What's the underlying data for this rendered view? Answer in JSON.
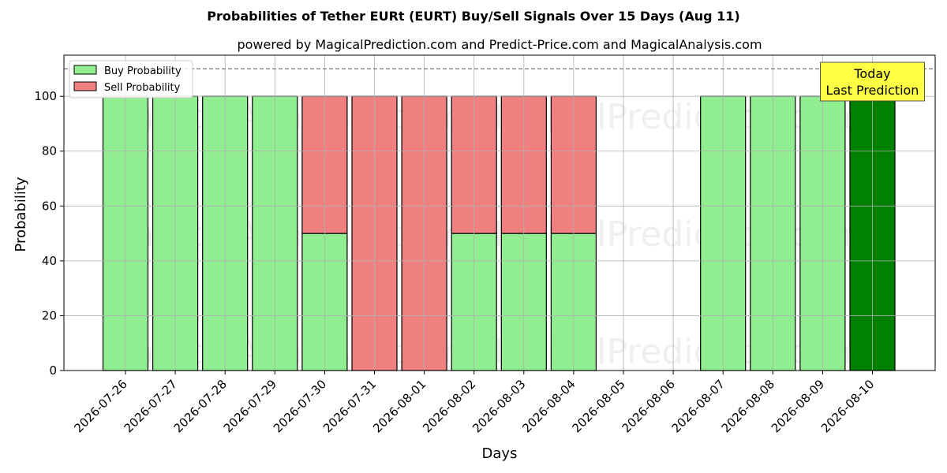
{
  "chart_data": {
    "type": "bar",
    "stacked": true,
    "title": "Probabilities of Tether EURt (EURT) Buy/Sell Signals Over 15 Days (Aug 11)",
    "subtitle": "powered by MagicalPrediction.com and Predict-Price.com and MagicalAnalysis.com",
    "xlabel": "Days",
    "ylabel": "Probability",
    "ylim": [
      0,
      115
    ],
    "yticks": [
      0,
      20,
      40,
      60,
      80,
      100
    ],
    "grid": true,
    "legend_position": "top-left",
    "reference_line": 110,
    "categories": [
      "2026-07-26",
      "2026-07-27",
      "2026-07-28",
      "2026-07-29",
      "2026-07-30",
      "2026-07-31",
      "2026-08-01",
      "2026-08-02",
      "2026-08-03",
      "2026-08-04",
      "2026-08-05",
      "2026-08-06",
      "2026-08-07",
      "2026-08-08",
      "2026-08-09",
      "2026-08-10"
    ],
    "series": [
      {
        "name": "Buy Probability",
        "color": "#90ee90",
        "values": [
          100,
          100,
          100,
          100,
          50,
          0,
          0,
          50,
          50,
          50,
          0,
          0,
          100,
          100,
          100,
          100
        ]
      },
      {
        "name": "Sell Probability",
        "color": "#f08080",
        "values": [
          0,
          0,
          0,
          0,
          50,
          100,
          100,
          50,
          50,
          50,
          0,
          0,
          0,
          0,
          0,
          0
        ]
      }
    ],
    "highlight": {
      "index": 15,
      "color": "#008000",
      "label_line1": "Today",
      "label_line2": "Last Prediction",
      "box_color": "#ffff44"
    },
    "watermarks": [
      "MagicalAnalysis.com",
      "MagicalPrediction.com"
    ]
  }
}
